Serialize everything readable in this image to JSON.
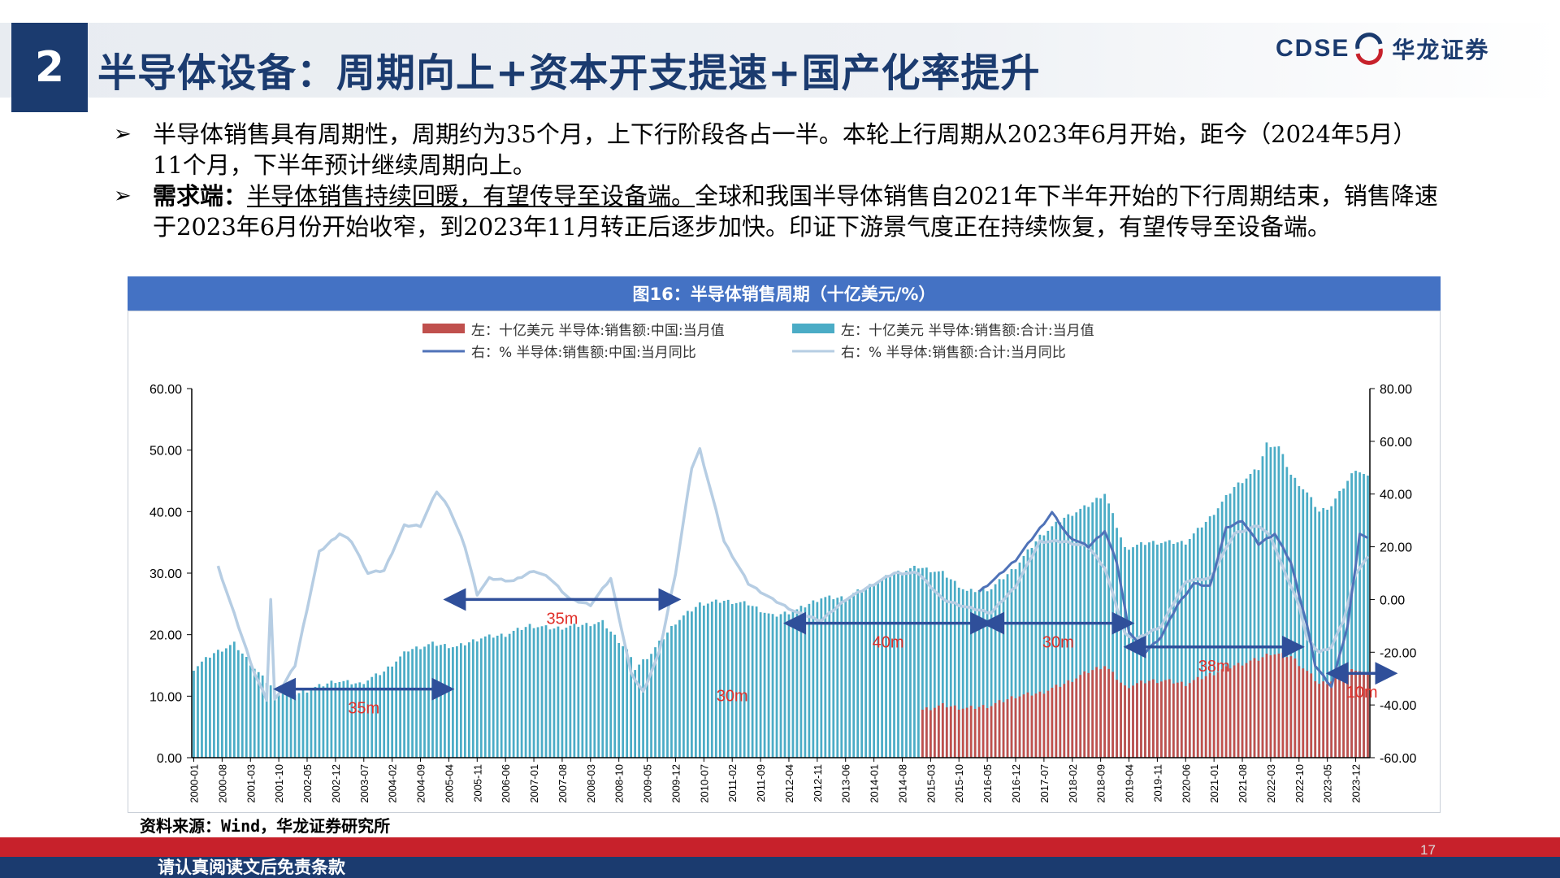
{
  "header": {
    "section_number": "2",
    "title": "半导体设备：周期向上+资本开支提速+国产化率提升",
    "logo_en": "CDSE",
    "logo_cn": "华龙证券"
  },
  "bullets": [
    {
      "arrow": "➢",
      "text": "半导体销售具有周期性，周期约为35个月，上下行阶段各占一半。本轮上行周期从2023年6月开始，距今（2024年5月）11个月，下半年预计继续周期向上。"
    },
    {
      "arrow": "➢",
      "lead": "需求端：",
      "underlined": "半导体销售持续回暖，有望传导至设备端。",
      "text": "全球和我国半导体销售自2021年下半年开始的下行周期结束，销售降速于2023年6月份开始收窄，到2023年11月转正后逐步加快。印证下游景气度正在持续恢复，有望传导至设备端。"
    }
  ],
  "figure_title": "图16：半导体销售周期（十亿美元/%）",
  "source": "资料来源：Wind，华龙证券研究所",
  "footer": {
    "disclaimer": "请认真阅读文后免责条款",
    "page_number": "17"
  },
  "colors": {
    "china_bar": "#c0504d",
    "total_bar": "#4bacc6",
    "china_yoy": "#4f72b8",
    "total_yoy": "#b6cde3",
    "arrow": "#2f4f9a",
    "annotation": "#e0302a",
    "title_blue": "#1b3b6f"
  },
  "chart_data": {
    "type": "bar-line-combo",
    "legend": [
      {
        "label": "左：十亿美元 半导体:销售额:中国:当月值",
        "kind": "bar",
        "series": "china_sales"
      },
      {
        "label": "左：十亿美元 半导体:销售额:合计:当月值",
        "kind": "bar",
        "series": "total_sales"
      },
      {
        "label": "右：% 半导体:销售额:中国:当月同比",
        "kind": "line",
        "series": "china_yoy"
      },
      {
        "label": "右：% 半导体:销售额:合计:当月同比",
        "kind": "line",
        "series": "total_yoy"
      }
    ],
    "legend_position": "top-center",
    "start_month": "2000-01",
    "end_month": "2024-03",
    "x_tick_labels": [
      "2000-01",
      "2000-08",
      "2001-03",
      "2001-10",
      "2002-05",
      "2002-12",
      "2003-07",
      "2004-02",
      "2004-09",
      "2005-04",
      "2005-11",
      "2006-06",
      "2007-01",
      "2007-08",
      "2008-03",
      "2008-10",
      "2009-05",
      "2009-12",
      "2010-07",
      "2011-02",
      "2011-09",
      "2012-04",
      "2012-11",
      "2013-06",
      "2014-01",
      "2014-08",
      "2015-03",
      "2015-10",
      "2016-05",
      "2016-12",
      "2017-07",
      "2018-02",
      "2018-09",
      "2019-04",
      "2019-11",
      "2020-06",
      "2021-01",
      "2021-08",
      "2022-03",
      "2022-10",
      "2023-05",
      "2023-12"
    ],
    "y_left": {
      "min": 0,
      "max": 60,
      "ticks": [
        "0.00",
        "10.00",
        "20.00",
        "30.00",
        "40.00",
        "50.00",
        "60.00"
      ]
    },
    "y_right": {
      "min": -60,
      "max": 80,
      "ticks": [
        "-60.00",
        "-40.00",
        "-20.00",
        "0.00",
        "20.00",
        "40.00",
        "60.00",
        "80.00"
      ]
    },
    "grid": false,
    "total_sales_anchors": [
      [
        "2000-01",
        14.5
      ],
      [
        "2000-06",
        17
      ],
      [
        "2000-11",
        18.5
      ],
      [
        "2001-06",
        13
      ],
      [
        "2001-10",
        10.5
      ],
      [
        "2002-03",
        10.5
      ],
      [
        "2002-12",
        12.5
      ],
      [
        "2003-06",
        12
      ],
      [
        "2003-12",
        14
      ],
      [
        "2004-06",
        17.5
      ],
      [
        "2004-12",
        18.5
      ],
      [
        "2005-06",
        18
      ],
      [
        "2005-12",
        19.5
      ],
      [
        "2006-06",
        20
      ],
      [
        "2006-12",
        21.5
      ],
      [
        "2007-06",
        21
      ],
      [
        "2007-12",
        21.5
      ],
      [
        "2008-06",
        22
      ],
      [
        "2008-12",
        17.5
      ],
      [
        "2009-02",
        14.5
      ],
      [
        "2009-06",
        17
      ],
      [
        "2009-12",
        22
      ],
      [
        "2010-06",
        25
      ],
      [
        "2010-12",
        25.5
      ],
      [
        "2011-06",
        25
      ],
      [
        "2011-12",
        23
      ],
      [
        "2012-06",
        24
      ],
      [
        "2012-12",
        26
      ],
      [
        "2013-06",
        26
      ],
      [
        "2013-12",
        28
      ],
      [
        "2014-06",
        30
      ],
      [
        "2014-12",
        31
      ],
      [
        "2015-06",
        30
      ],
      [
        "2015-12",
        27
      ],
      [
        "2016-06",
        27.5
      ],
      [
        "2016-12",
        31
      ],
      [
        "2017-06",
        36
      ],
      [
        "2017-12",
        39
      ],
      [
        "2018-06",
        41
      ],
      [
        "2018-10",
        43
      ],
      [
        "2019-03",
        34
      ],
      [
        "2019-09",
        35
      ],
      [
        "2020-01",
        35
      ],
      [
        "2020-06",
        35
      ],
      [
        "2020-12",
        39
      ],
      [
        "2021-06",
        44
      ],
      [
        "2021-12",
        47
      ],
      [
        "2022-02",
        51
      ],
      [
        "2022-05",
        50.5
      ],
      [
        "2022-08",
        46
      ],
      [
        "2022-12",
        43
      ],
      [
        "2023-03",
        40
      ],
      [
        "2023-06",
        41
      ],
      [
        "2023-12",
        47
      ],
      [
        "2024-03",
        45.5
      ]
    ],
    "china_sales_anchors": [
      [
        "2015-01",
        7.8
      ],
      [
        "2015-06",
        8.5
      ],
      [
        "2015-12",
        8
      ],
      [
        "2016-06",
        8.5
      ],
      [
        "2016-12",
        10
      ],
      [
        "2017-06",
        10.5
      ],
      [
        "2017-12",
        12
      ],
      [
        "2018-06",
        14
      ],
      [
        "2018-10",
        15
      ],
      [
        "2019-03",
        11.5
      ],
      [
        "2019-09",
        12.5
      ],
      [
        "2020-01",
        12.5
      ],
      [
        "2020-06",
        12
      ],
      [
        "2020-12",
        13.5
      ],
      [
        "2021-06",
        15
      ],
      [
        "2021-12",
        16
      ],
      [
        "2022-03",
        17
      ],
      [
        "2022-08",
        16.5
      ],
      [
        "2022-12",
        14
      ],
      [
        "2023-03",
        12
      ],
      [
        "2023-06",
        12.5
      ],
      [
        "2023-12",
        14.5
      ],
      [
        "2024-03",
        13.5
      ]
    ],
    "total_yoy_anchors": [
      [
        "2000-07",
        12.5
      ],
      [
        "2000-12",
        -10
      ],
      [
        "2001-04",
        -28
      ],
      [
        "2001-07",
        -38
      ],
      [
        "2001-08",
        0
      ],
      [
        "2001-09",
        -38
      ],
      [
        "2002-02",
        -25
      ],
      [
        "2002-08",
        18
      ],
      [
        "2003-01",
        25
      ],
      [
        "2003-04",
        22
      ],
      [
        "2003-08",
        10
      ],
      [
        "2003-12",
        11
      ],
      [
        "2004-05",
        28
      ],
      [
        "2004-09",
        28
      ],
      [
        "2005-01",
        41
      ],
      [
        "2005-04",
        35
      ],
      [
        "2005-08",
        20
      ],
      [
        "2005-11",
        2
      ],
      [
        "2006-02",
        8
      ],
      [
        "2006-08",
        7
      ],
      [
        "2007-01",
        11
      ],
      [
        "2007-05",
        8
      ],
      [
        "2007-10",
        0
      ],
      [
        "2008-03",
        -2
      ],
      [
        "2008-08",
        8
      ],
      [
        "2009-01",
        -28
      ],
      [
        "2009-04",
        -35
      ],
      [
        "2009-08",
        -20
      ],
      [
        "2009-12",
        10
      ],
      [
        "2010-04",
        50
      ],
      [
        "2010-06",
        57
      ],
      [
        "2010-12",
        22
      ],
      [
        "2011-06",
        6
      ],
      [
        "2011-12",
        0
      ],
      [
        "2012-06",
        -5
      ],
      [
        "2012-12",
        -8
      ],
      [
        "2013-06",
        0
      ],
      [
        "2013-12",
        5
      ],
      [
        "2014-06",
        10
      ],
      [
        "2014-12",
        10
      ],
      [
        "2015-06",
        0
      ],
      [
        "2015-12",
        -3
      ],
      [
        "2016-06",
        -5
      ],
      [
        "2016-12",
        5
      ],
      [
        "2017-06",
        22
      ],
      [
        "2017-12",
        22
      ],
      [
        "2018-06",
        20
      ],
      [
        "2018-10",
        12
      ],
      [
        "2019-03",
        -13
      ],
      [
        "2019-06",
        -15
      ],
      [
        "2019-12",
        -10
      ],
      [
        "2020-06",
        7
      ],
      [
        "2020-12",
        8
      ],
      [
        "2021-06",
        25
      ],
      [
        "2021-12",
        28
      ],
      [
        "2022-03",
        24
      ],
      [
        "2022-06",
        12
      ],
      [
        "2022-10",
        -2
      ],
      [
        "2022-12",
        -15
      ],
      [
        "2023-03",
        -20
      ],
      [
        "2023-06",
        -18
      ],
      [
        "2023-09",
        -8
      ],
      [
        "2023-12",
        10
      ],
      [
        "2024-03",
        16
      ]
    ],
    "china_yoy_anchors": [
      [
        "2016-03",
        3
      ],
      [
        "2016-07",
        8
      ],
      [
        "2016-12",
        15
      ],
      [
        "2017-05",
        25
      ],
      [
        "2017-09",
        33
      ],
      [
        "2018-01",
        24
      ],
      [
        "2018-06",
        20
      ],
      [
        "2018-10",
        26
      ],
      [
        "2019-01",
        14
      ],
      [
        "2019-04",
        -12
      ],
      [
        "2019-08",
        -20
      ],
      [
        "2019-12",
        -14
      ],
      [
        "2020-04",
        -2
      ],
      [
        "2020-08",
        6
      ],
      [
        "2020-12",
        5
      ],
      [
        "2021-04",
        27
      ],
      [
        "2021-08",
        30
      ],
      [
        "2021-12",
        21
      ],
      [
        "2022-04",
        25
      ],
      [
        "2022-08",
        14
      ],
      [
        "2022-12",
        -10
      ],
      [
        "2023-02",
        -25
      ],
      [
        "2023-06",
        -33
      ],
      [
        "2023-10",
        -10
      ],
      [
        "2024-01",
        25
      ],
      [
        "2024-03",
        23
      ]
    ],
    "cycle_arrows": [
      {
        "from": "2001-10",
        "to": "2005-04",
        "y_right": -34,
        "label": "35m"
      },
      {
        "from": "2005-04",
        "to": "2009-12",
        "y_right": 0,
        "label": "35m"
      },
      {
        "from": "2012-04",
        "to": "2016-05",
        "y_right": -9,
        "label": "40m"
      },
      {
        "from": "2016-05",
        "to": "2019-04",
        "y_right": -9,
        "label": "30m"
      },
      {
        "from": "2019-04",
        "to": "2022-10",
        "y_right": -18,
        "label": "38m"
      },
      {
        "from": "2023-06",
        "to": "2024-09",
        "y_right": -28,
        "label": "10m"
      }
    ],
    "free_labels": [
      {
        "at": "2011-02",
        "y_left": 10,
        "label": "30m"
      }
    ]
  }
}
